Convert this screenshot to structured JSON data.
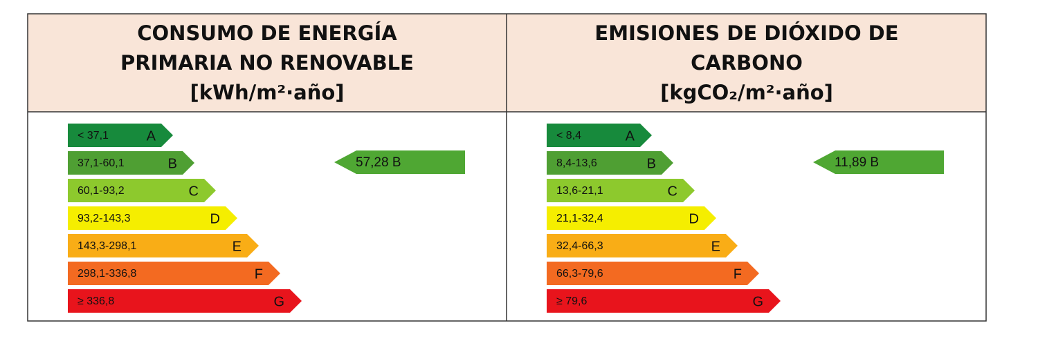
{
  "panels": [
    {
      "title": [
        "CONSUMO DE ENERGÍA",
        "PRIMARIA NO RENOVABLE",
        "[kWh/m²·año]"
      ],
      "classes": [
        {
          "range": "< 37,1",
          "letter": "A"
        },
        {
          "range": "37,1-60,1",
          "letter": "B"
        },
        {
          "range": "60,1-93,2",
          "letter": "C"
        },
        {
          "range": "93,2-143,3",
          "letter": "D"
        },
        {
          "range": "143,3-298,1",
          "letter": "E"
        },
        {
          "range": "298,1-336,8",
          "letter": "F"
        },
        {
          "range": "≥ 336,8",
          "letter": "G"
        }
      ],
      "rating": "57,28 B"
    },
    {
      "title": [
        "EMISIONES DE DIÓXIDO DE",
        "CARBONO",
        "[kgCO₂/m²·año]"
      ],
      "classes": [
        {
          "range": "< 8,4",
          "letter": "A"
        },
        {
          "range": "8,4-13,6",
          "letter": "B"
        },
        {
          "range": "13,6-21,1",
          "letter": "C"
        },
        {
          "range": "21,1-32,4",
          "letter": "D"
        },
        {
          "range": "32,4-66,3",
          "letter": "E"
        },
        {
          "range": "66,3-79,6",
          "letter": "F"
        },
        {
          "range": "≥ 79,6",
          "letter": "G"
        }
      ],
      "rating": "11,89 B"
    }
  ]
}
